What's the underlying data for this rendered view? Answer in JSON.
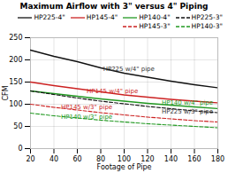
{
  "chart_data": {
    "type": "line",
    "title": "Maximum Airflow with 3\" versus 4\" Piping",
    "xlabel": "Footage of Pipe",
    "ylabel": "CFM",
    "x": [
      20,
      40,
      60,
      80,
      100,
      120,
      140,
      160,
      180
    ],
    "series": [
      {
        "name": "HP225-4\"",
        "color": "#111111",
        "line_style": "solid",
        "values": [
          222,
          208,
          196,
          182,
          170,
          161,
          152,
          144,
          137
        ]
      },
      {
        "name": "HP145-4\"",
        "color": "#cc2222",
        "line_style": "solid",
        "values": [
          150,
          142,
          135,
          128,
          121,
          116,
          111,
          107,
          103
        ]
      },
      {
        "name": "HP140-4\"",
        "color": "#229922",
        "line_style": "solid",
        "values": [
          130,
          124,
          118,
          112,
          107,
          102,
          98,
          94,
          90
        ]
      },
      {
        "name": "HP225-3\"",
        "color": "#111111",
        "line_style": "dashed",
        "values": [
          130,
          122,
          114,
          107,
          101,
          95,
          90,
          85,
          81
        ]
      },
      {
        "name": "HP145-3\"",
        "color": "#cc2222",
        "line_style": "dashed",
        "values": [
          100,
          93,
          87,
          81,
          76,
          71,
          67,
          63,
          60
        ]
      },
      {
        "name": "HP140-3\"",
        "color": "#229922",
        "line_style": "dashed",
        "values": [
          80,
          74,
          69,
          64,
          60,
          56,
          53,
          50,
          47
        ]
      }
    ],
    "annotations": [
      {
        "text": "HP225 w/4\" pipe",
        "x": 82,
        "y": 176,
        "color": "#333333"
      },
      {
        "text": "HP145 w/4\" pipe",
        "x": 68,
        "y": 126,
        "color": "#cc2222"
      },
      {
        "text": "HP145 w/3\" pipe",
        "x": 46,
        "y": 90,
        "color": "#cc2222"
      },
      {
        "text": "HP140 w/3\" pipe",
        "x": 46,
        "y": 68,
        "color": "#229922"
      },
      {
        "text": "HP140 w/4\" pipe",
        "x": 132,
        "y": 100,
        "color": "#229922"
      },
      {
        "text": "HP225 w/3\" pipe",
        "x": 132,
        "y": 80,
        "color": "#333333"
      }
    ],
    "xlim": [
      20,
      180
    ],
    "ylim": [
      0,
      250
    ],
    "xticks": [
      20,
      40,
      60,
      80,
      100,
      120,
      140,
      160,
      180
    ],
    "yticks": [
      0,
      50,
      100,
      150,
      200,
      250
    ],
    "grid": true,
    "legend": "upper right"
  }
}
